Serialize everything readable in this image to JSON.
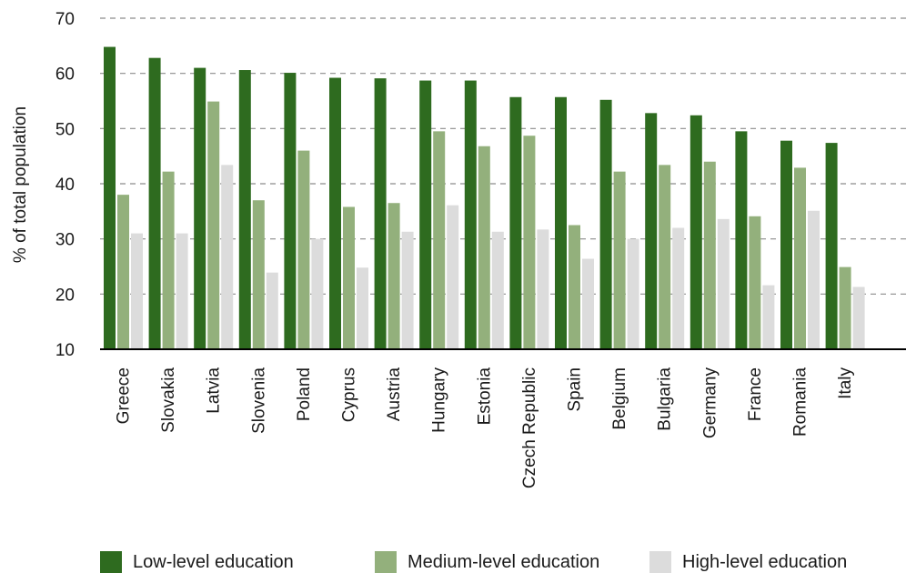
{
  "chart_data": {
    "type": "bar",
    "ylabel": "% of total population",
    "ylim": [
      10,
      70
    ],
    "yticks": [
      10,
      20,
      30,
      40,
      50,
      60,
      70
    ],
    "grid": true,
    "legend_position": "bottom",
    "categories": [
      "Greece",
      "Slovakia",
      "Latvia",
      "Slovenia",
      "Poland",
      "Cyprus",
      "Austria",
      "Hungary",
      "Estonia",
      "Czech Republic",
      "Spain",
      "Belgium",
      "Bulgaria",
      "Germany",
      "France",
      "Romania",
      "Italy"
    ],
    "series": [
      {
        "name": "Low-level education",
        "color": "#2e6b1f",
        "values": [
          64.8,
          62.8,
          61.0,
          60.6,
          60.1,
          59.2,
          59.1,
          58.7,
          58.7,
          55.7,
          55.7,
          55.2,
          52.8,
          52.4,
          49.5,
          47.8,
          47.4
        ]
      },
      {
        "name": "Medium-level education",
        "color": "#93b07c",
        "values": [
          38.0,
          42.2,
          54.9,
          37.0,
          46.0,
          35.8,
          36.5,
          49.5,
          46.8,
          48.7,
          32.5,
          42.2,
          43.4,
          44.0,
          34.1,
          42.9,
          24.9
        ]
      },
      {
        "name": "High-level education",
        "color": "#dcdcdc",
        "values": [
          31.0,
          31.0,
          43.4,
          23.9,
          30.0,
          24.8,
          31.3,
          36.1,
          31.3,
          31.7,
          26.4,
          30.0,
          32.0,
          33.6,
          21.6,
          35.1,
          21.3
        ]
      }
    ]
  }
}
